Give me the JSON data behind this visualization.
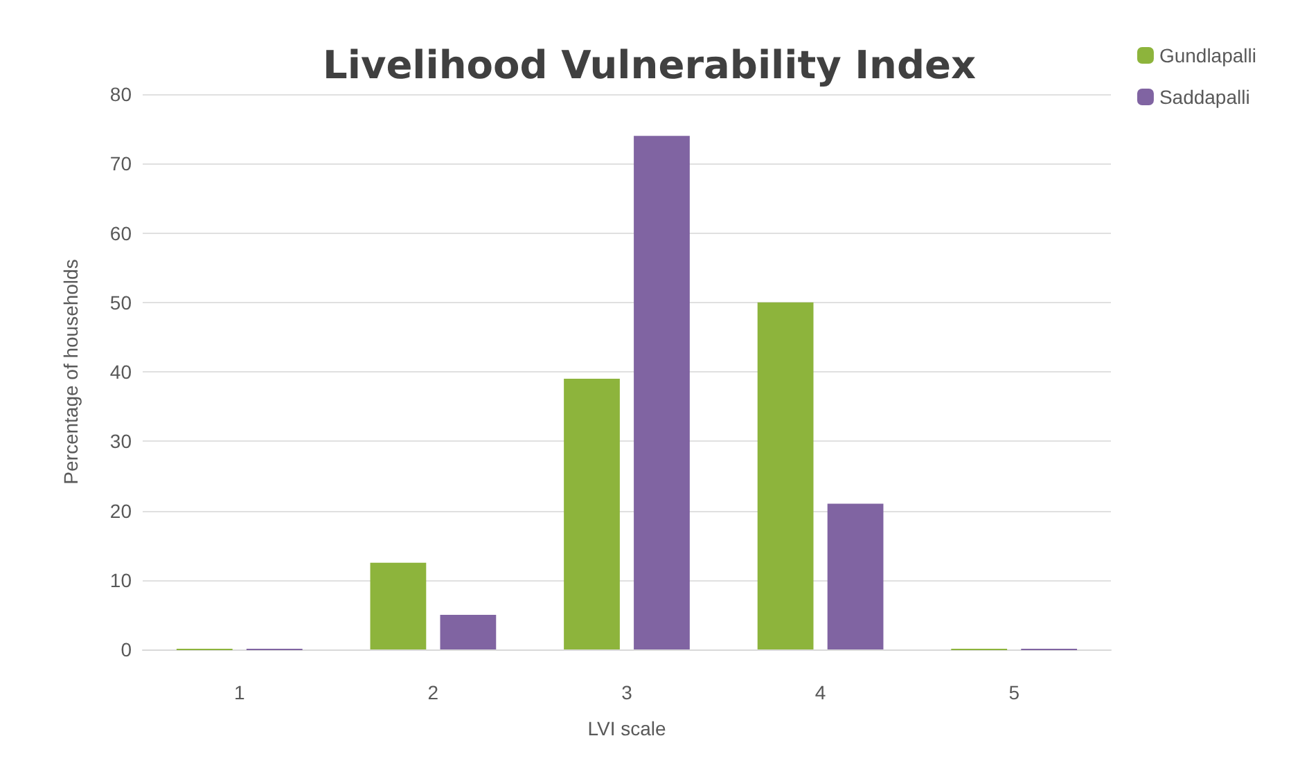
{
  "chart_data": {
    "type": "bar",
    "title": "Livelihood Vulnerability Index",
    "xlabel": "LVI scale",
    "ylabel": "Percentage of households",
    "categories": [
      "1",
      "2",
      "3",
      "4",
      "5"
    ],
    "series": [
      {
        "name": "Gundlapalli",
        "color": "#8db43c",
        "values": [
          0,
          12.5,
          39,
          50,
          0
        ]
      },
      {
        "name": "Saddapalli",
        "color": "#8064a2",
        "values": [
          0,
          5,
          74,
          21,
          0
        ]
      }
    ],
    "ylim": [
      0,
      80
    ],
    "yticks": [
      0,
      10,
      20,
      30,
      40,
      50,
      60,
      70,
      80
    ],
    "grid": "y",
    "legend": "top right"
  }
}
